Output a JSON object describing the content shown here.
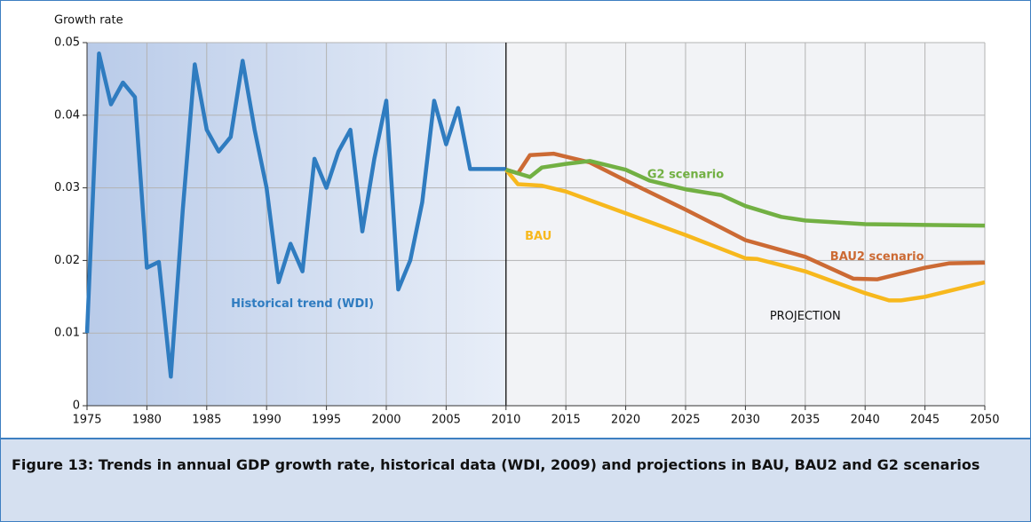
{
  "chart_data": {
    "type": "line",
    "y_label": "Growth rate",
    "caption": "Figure 13: Trends in annual GDP growth rate, historical data (WDI, 2009) and projections in BAU, BAU2 and G2 scenarios",
    "xlim": [
      1975,
      2050
    ],
    "xticks": [
      1975,
      1980,
      1985,
      1990,
      1995,
      2000,
      2005,
      2010,
      2015,
      2020,
      2025,
      2030,
      2035,
      2040,
      2045,
      2050
    ],
    "ylim": [
      0,
      0.05
    ],
    "yticks": [
      0,
      0.01,
      0.02,
      0.03,
      0.04,
      0.05
    ],
    "grid": true,
    "projection_start": 2010,
    "annotations": [
      "PROJECTION"
    ],
    "series": [
      {
        "name": "Historical trend (WDI)",
        "color": "#2f7cc0",
        "x": [
          1975,
          1976,
          1977,
          1978,
          1979,
          1980,
          1981,
          1982,
          1983,
          1984,
          1985,
          1986,
          1987,
          1988,
          1989,
          1990,
          1991,
          1992,
          1993,
          1994,
          1995,
          1996,
          1997,
          1998,
          1999,
          2000,
          2001,
          2002,
          2003,
          2004,
          2005,
          2006,
          2007,
          2008,
          2009,
          2010
        ],
        "values": [
          0.01,
          0.0485,
          0.0415,
          0.0445,
          0.0425,
          0.019,
          0.0198,
          0.004,
          0.027,
          0.047,
          0.038,
          0.035,
          0.037,
          0.0475,
          0.038,
          0.03,
          0.017,
          0.0223,
          0.0185,
          0.034,
          0.03,
          0.035,
          0.038,
          0.024,
          0.034,
          0.042,
          0.016,
          0.02,
          0.028,
          0.042,
          0.036,
          0.041,
          0.0326,
          0.0326,
          0.0326,
          0.0326
        ]
      },
      {
        "name": "BAU",
        "color": "#f7b81d",
        "x": [
          2010,
          2011,
          2013,
          2015,
          2020,
          2025,
          2030,
          2031,
          2035,
          2040,
          2042,
          2043,
          2045,
          2050
        ],
        "values": [
          0.0325,
          0.0305,
          0.0303,
          0.0295,
          0.0265,
          0.0235,
          0.0203,
          0.0202,
          0.0185,
          0.0155,
          0.0145,
          0.0145,
          0.015,
          0.017
        ]
      },
      {
        "name": "BAU2 scenario",
        "color": "#cc6a34",
        "x": [
          2010,
          2011,
          2012,
          2014,
          2017,
          2020,
          2025,
          2028,
          2030,
          2035,
          2039,
          2041,
          2043,
          2045,
          2047,
          2050
        ],
        "values": [
          0.0325,
          0.032,
          0.0345,
          0.0347,
          0.0335,
          0.031,
          0.027,
          0.0245,
          0.0228,
          0.0205,
          0.0175,
          0.0174,
          0.0182,
          0.019,
          0.0196,
          0.0197
        ]
      },
      {
        "name": "G2 scenario",
        "color": "#72b043",
        "x": [
          2010,
          2011,
          2012,
          2013,
          2015,
          2017,
          2020,
          2022,
          2025,
          2028,
          2030,
          2033,
          2035,
          2040,
          2045,
          2050
        ],
        "values": [
          0.0325,
          0.032,
          0.0315,
          0.0328,
          0.0333,
          0.0337,
          0.0325,
          0.031,
          0.0298,
          0.029,
          0.0275,
          0.026,
          0.0255,
          0.025,
          0.0249,
          0.0248
        ]
      }
    ]
  }
}
